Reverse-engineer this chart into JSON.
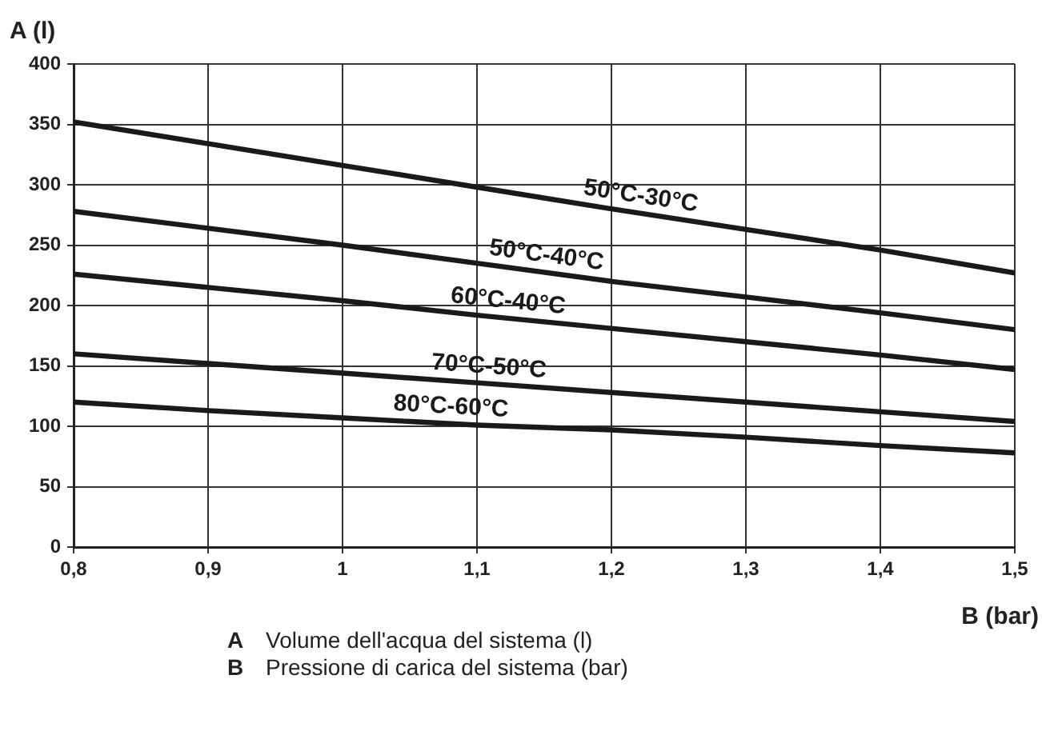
{
  "chart_data": {
    "type": "line",
    "xlabel": "B (bar)",
    "ylabel": "A (l)",
    "x": [
      0.8,
      0.9,
      1.0,
      1.1,
      1.2,
      1.3,
      1.4,
      1.5
    ],
    "series": [
      {
        "name": "50°C-30°C",
        "color": "#1a1a1a",
        "values": [
          352,
          334,
          316,
          298,
          280,
          263,
          246,
          227
        ]
      },
      {
        "name": "50°C-40°C",
        "color": "#1a1a1a",
        "values": [
          278,
          264,
          250,
          235,
          220,
          207,
          194,
          180
        ]
      },
      {
        "name": "60°C-40°C",
        "color": "#1a1a1a",
        "values": [
          226,
          215,
          204,
          192,
          181,
          170,
          159,
          147
        ]
      },
      {
        "name": "70°C-50°C",
        "color": "#1a1a1a",
        "values": [
          160,
          152,
          144,
          136,
          128,
          120,
          112,
          104
        ]
      },
      {
        "name": "80°C-60°C",
        "color": "#1a1a1a",
        "values": [
          120,
          113,
          107,
          101,
          97,
          91,
          84,
          78
        ]
      }
    ],
    "xlim": [
      0.8,
      1.5
    ],
    "xticks": [
      {
        "value": 0.8,
        "label": "0,8"
      },
      {
        "value": 0.9,
        "label": "0,9"
      },
      1,
      {
        "value": 1.1,
        "label": "1,1"
      },
      {
        "value": 1.2,
        "label": "1,2"
      },
      {
        "value": 1.3,
        "label": "1,3"
      },
      {
        "value": 1.4,
        "label": "1,4"
      },
      {
        "value": 1.5,
        "label": "1,5"
      }
    ],
    "ylim": [
      0,
      400
    ],
    "yticks": [
      0,
      50,
      100,
      150,
      200,
      250,
      300,
      350,
      400
    ],
    "grid": true,
    "legend": false,
    "marker": "none",
    "line_style": "solid",
    "annotations": [
      "A Volume dell'acqua del sistema (l)",
      "B Pressione di carica del sistema (bar)"
    ]
  }
}
